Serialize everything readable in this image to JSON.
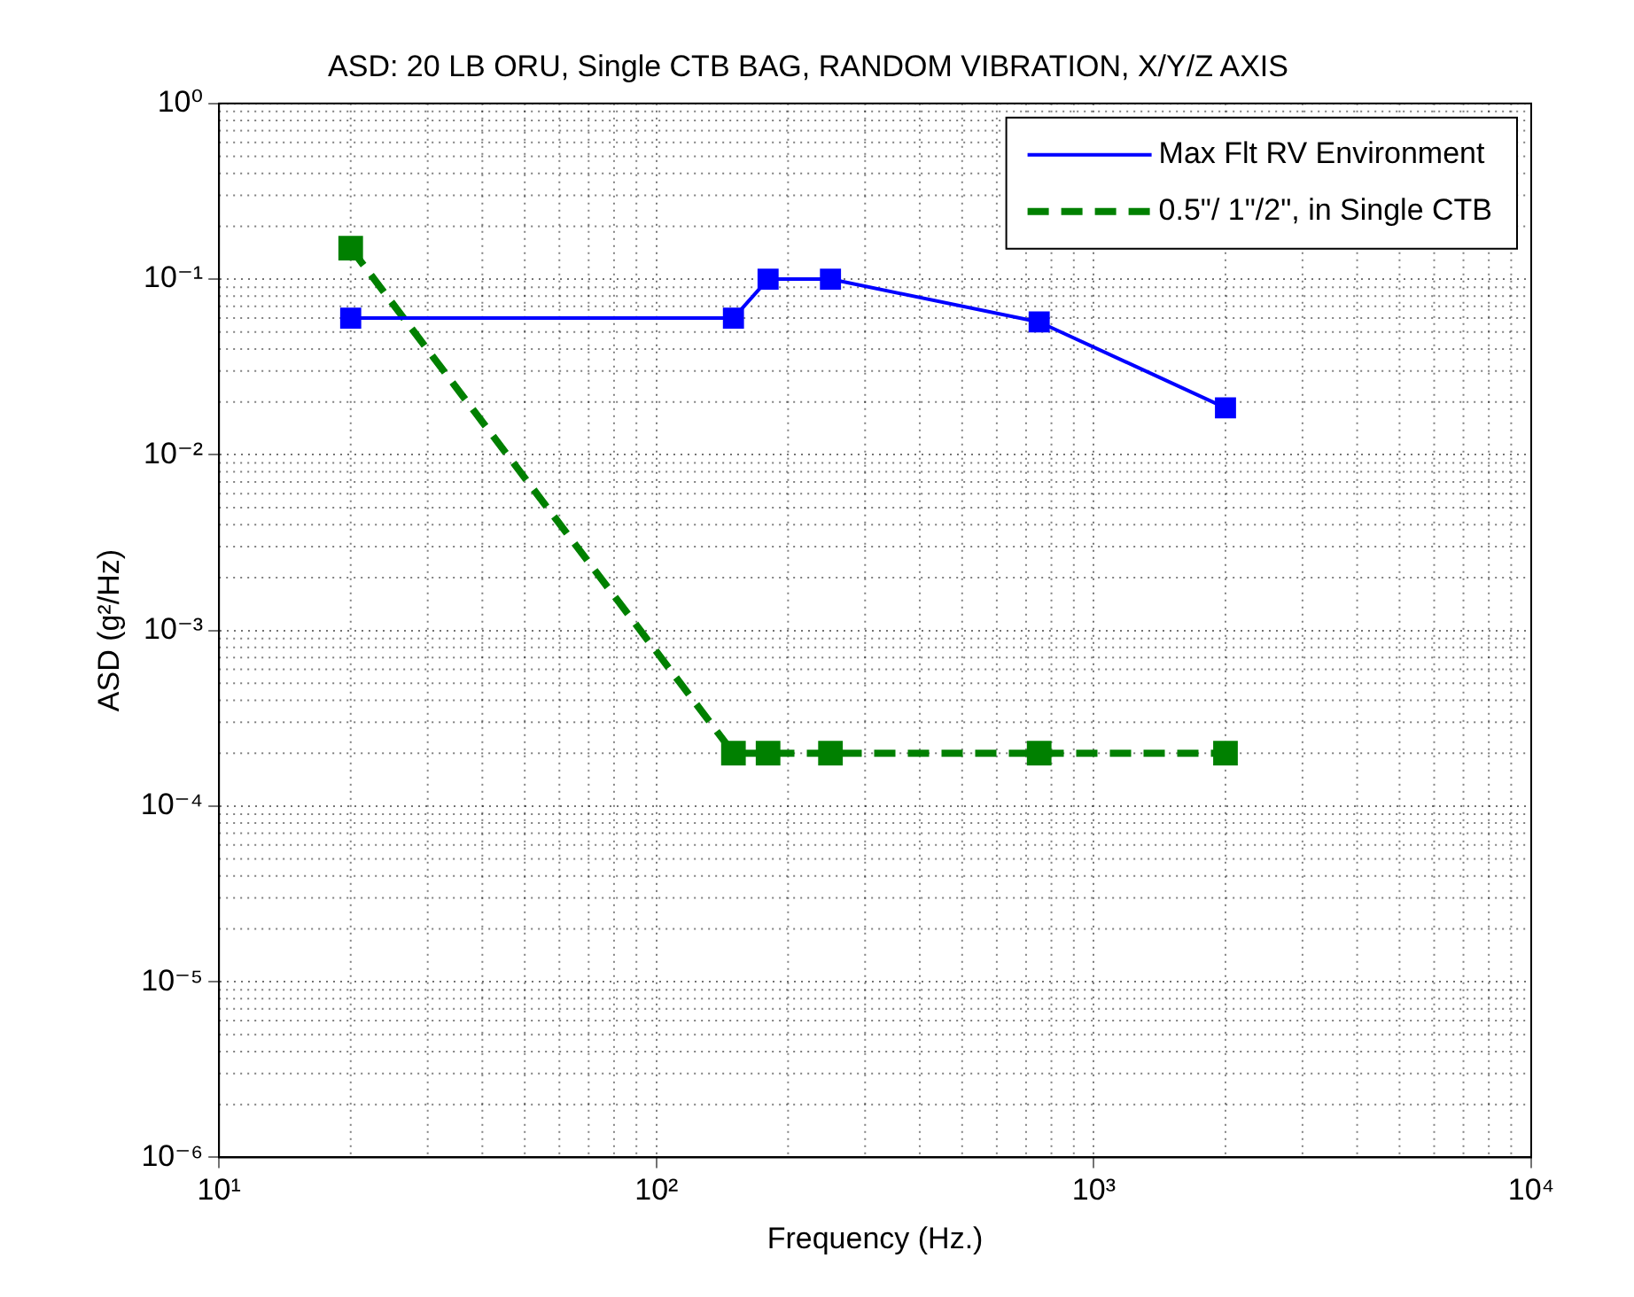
{
  "chart_data": {
    "type": "line",
    "title": "ASD: 20 LB ORU, Single CTB BAG, RANDOM VIBRATION, X/Y/Z AXIS",
    "xlabel": "Frequency (Hz.)",
    "ylabel": "ASD (g²/Hz)",
    "log": "xy",
    "grid": true,
    "legend": "top right",
    "marker": "square",
    "x": [
      20,
      150,
      180,
      250,
      750,
      2000
    ],
    "series": [
      {
        "name": "Max Flt RV Environment",
        "color": "#0000ff",
        "line_style": "solid",
        "values": [
          0.06,
          0.06,
          0.1,
          0.1,
          0.057,
          0.0185
        ]
      },
      {
        "name": "0.5\"/ 1\"/2\", in Single CTB",
        "color": "#008000",
        "line_style": "dashed",
        "values": [
          0.15,
          0.0002,
          0.0002,
          0.0002,
          0.0002,
          0.0002
        ]
      }
    ],
    "xlim": [
      10,
      10000
    ],
    "xticks": [
      {
        "value": 10,
        "label": "10¹"
      },
      {
        "value": 100,
        "label": "10²"
      },
      {
        "value": 1000,
        "label": "10³"
      },
      {
        "value": 10000,
        "label": "10⁴"
      }
    ],
    "ylim": [
      1e-06,
      1
    ],
    "yticks": [
      {
        "value": 1e-06,
        "label": "10⁻⁶"
      },
      {
        "value": 1e-05,
        "label": "10⁻⁵"
      },
      {
        "value": 0.0001,
        "label": "10⁻⁴"
      },
      {
        "value": 0.001,
        "label": "10⁻³"
      },
      {
        "value": 0.01,
        "label": "10⁻²"
      },
      {
        "value": 0.1,
        "label": "10⁻¹"
      },
      {
        "value": 1,
        "label": "10⁰"
      }
    ]
  }
}
